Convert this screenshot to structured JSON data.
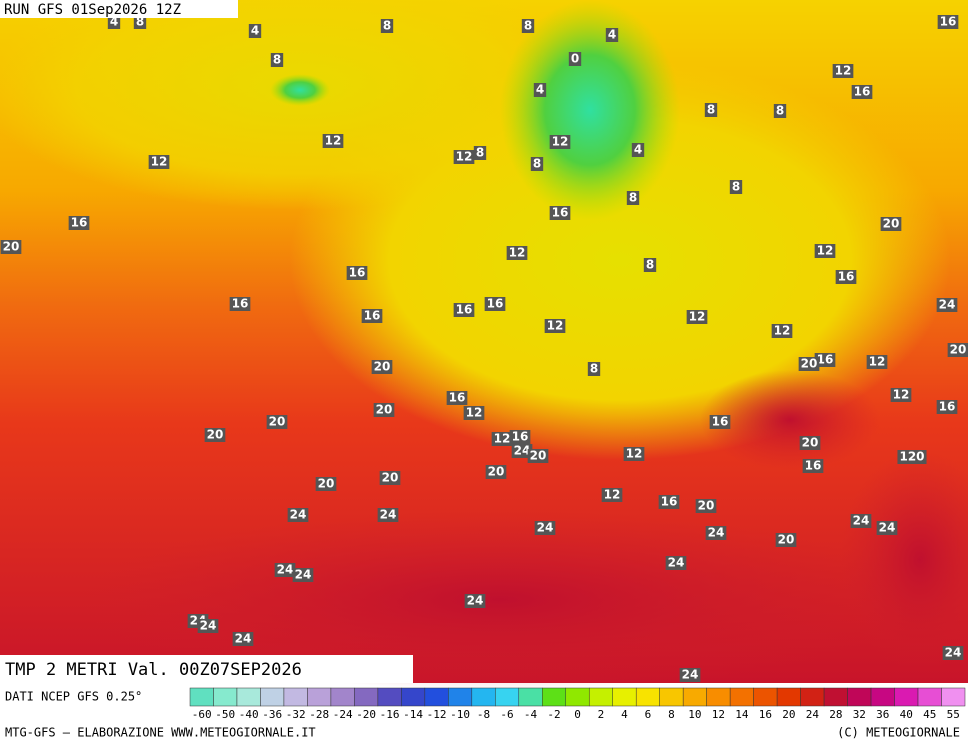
{
  "header": {
    "run": "RUN GFS 01Sep2026 12Z"
  },
  "map": {
    "title": "TMP 2 METRI Val. 00Z07SEP2026",
    "labels": [
      4,
      8,
      4,
      8,
      8,
      4,
      16,
      8,
      0,
      4,
      12,
      16,
      8,
      8,
      12,
      12,
      12,
      8,
      12,
      4,
      8,
      8,
      8,
      16,
      16,
      20,
      20,
      12,
      12,
      8,
      16,
      16,
      16,
      16,
      16,
      24,
      16,
      12,
      12,
      12,
      16,
      20,
      12,
      20,
      20,
      8,
      12,
      16,
      20,
      12,
      16,
      16,
      20,
      20,
      12,
      16,
      24,
      20,
      20,
      12,
      16,
      120,
      20,
      20,
      20,
      12,
      16,
      20,
      24,
      24,
      24,
      24,
      24,
      24,
      20,
      24,
      24,
      24,
      24,
      24,
      24,
      24,
      24,
      24
    ]
  },
  "colorbar": {
    "source": "DATI NCEP GFS 0.25°",
    "labels": [
      -60,
      -50,
      -40,
      -36,
      -32,
      -28,
      -24,
      -20,
      -16,
      -14,
      -12,
      -10,
      -8,
      -6,
      -4,
      -2,
      0,
      2,
      4,
      6,
      8,
      10,
      12,
      14,
      16,
      20,
      24,
      28,
      32,
      36,
      40,
      45,
      55
    ]
  },
  "footer": {
    "left": "MTG-GFS — ELABORAZIONE WWW.METEOGIORNALE.IT",
    "right": "(C) METEOGIORNALE"
  }
}
